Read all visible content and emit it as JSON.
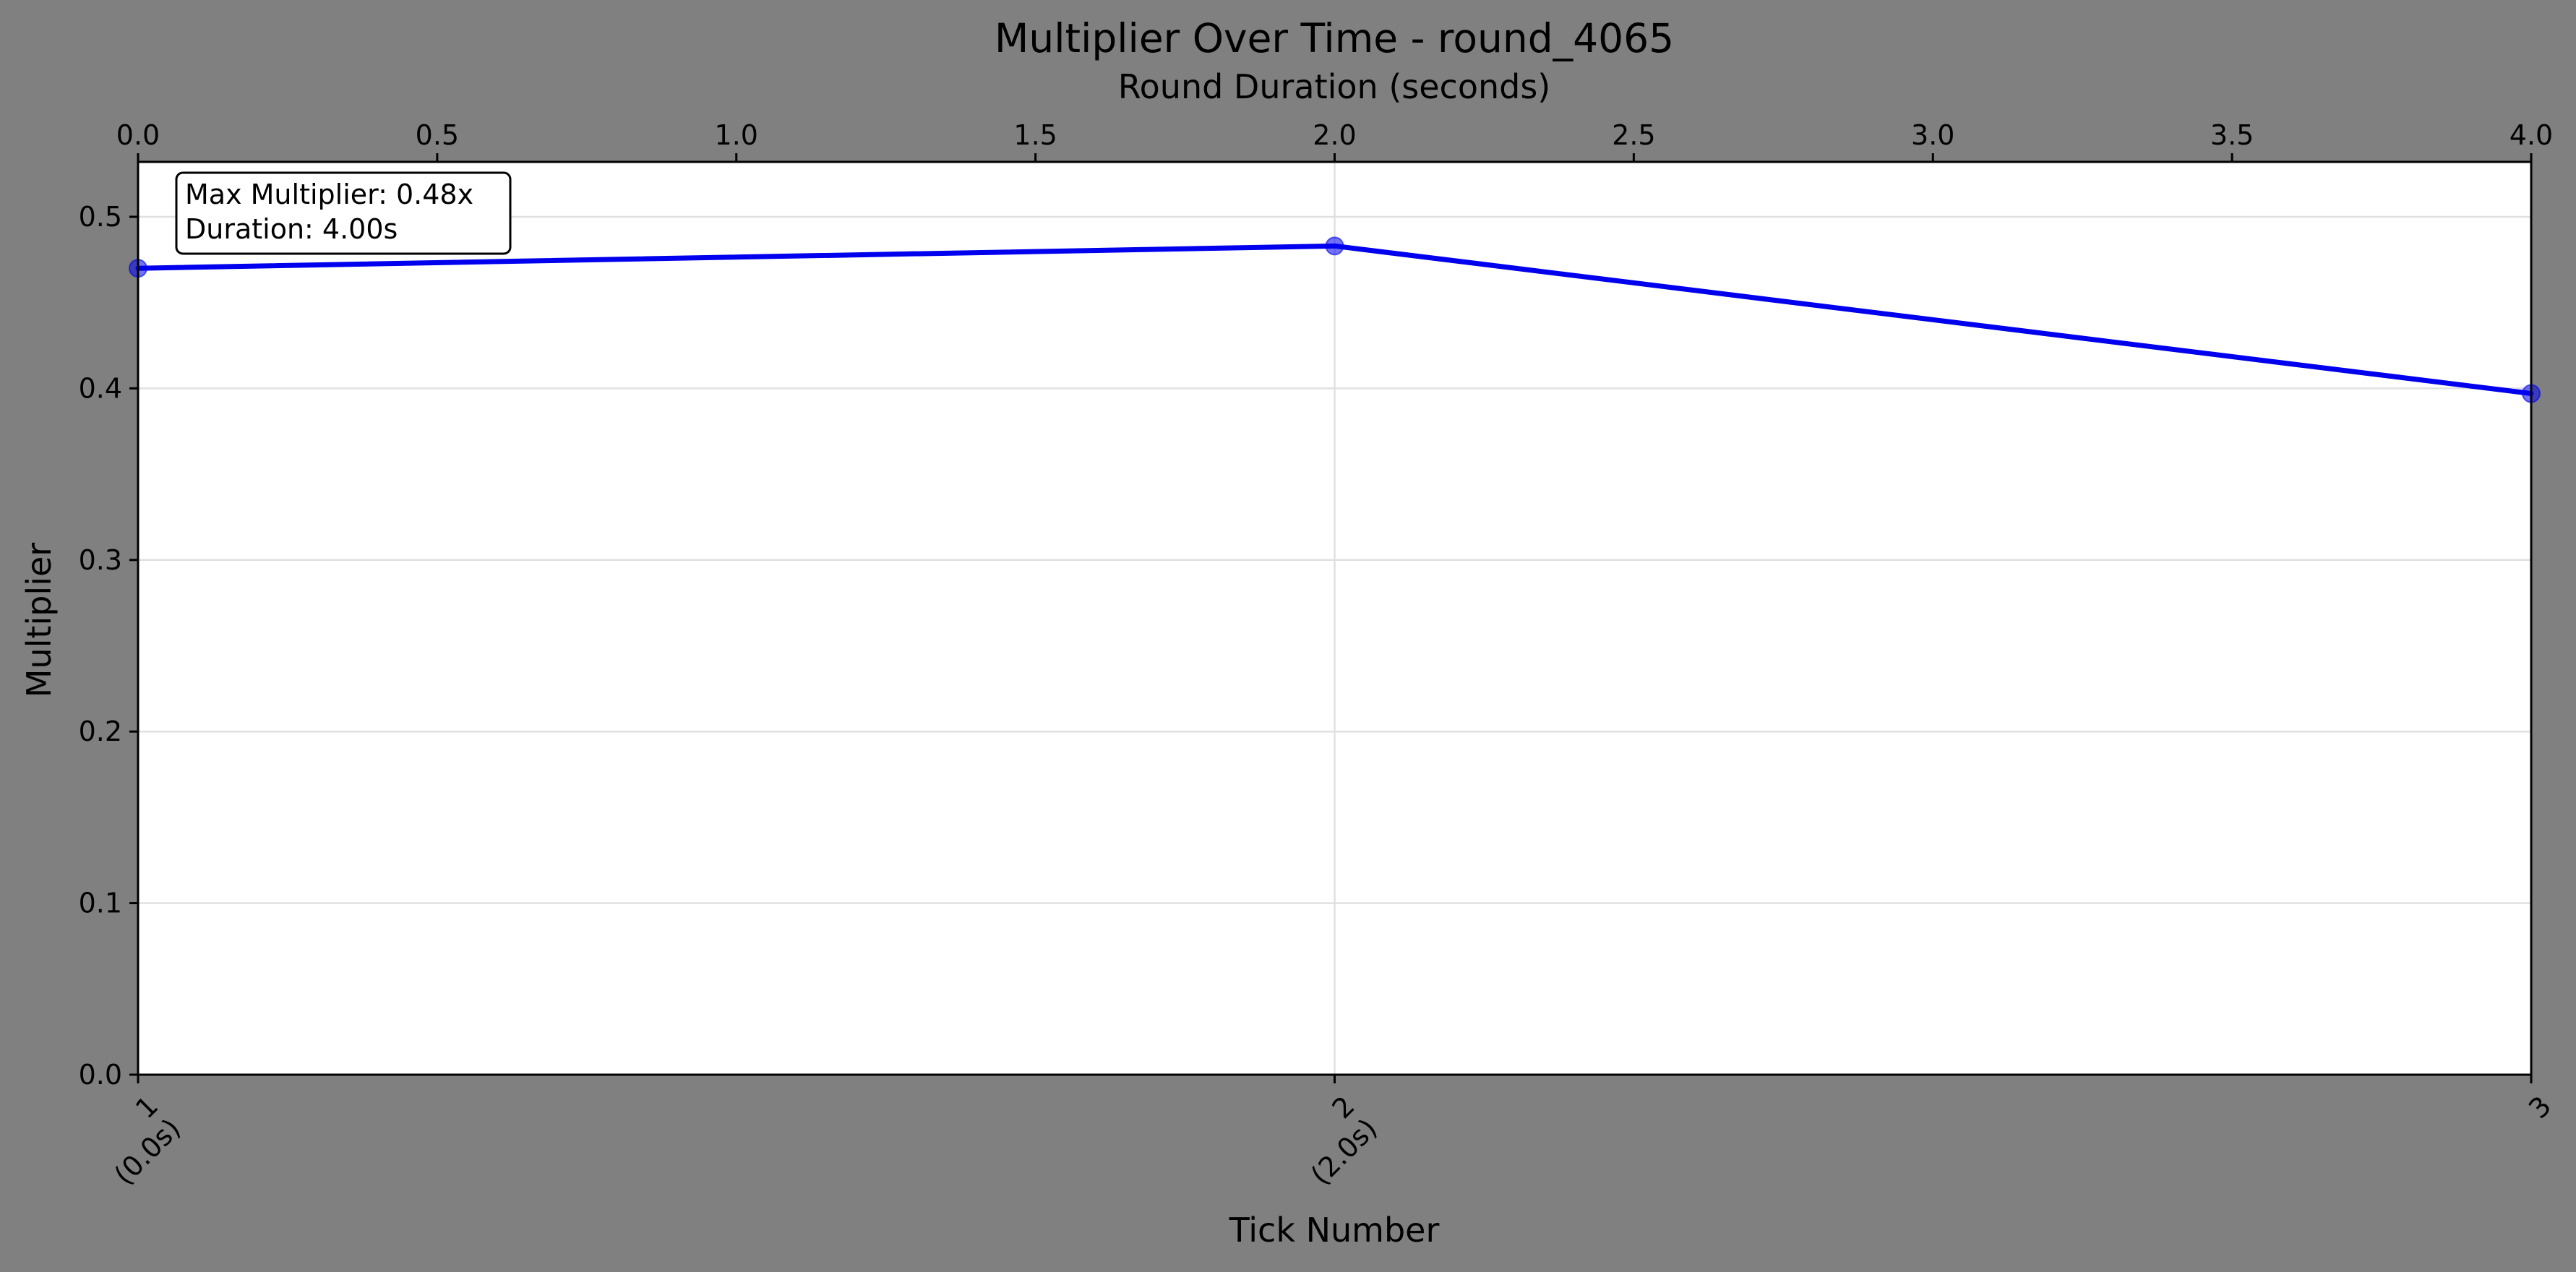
{
  "chart_data": {
    "type": "line",
    "title": "Multiplier Over Time - round_4065",
    "xlabel": "Tick Number",
    "x2label": "Round Duration (seconds)",
    "ylabel": "Multiplier",
    "x": [
      1,
      2,
      3
    ],
    "x_tick_labels": [
      "1\n(0.0s)",
      "2\n(2.0s)",
      "3"
    ],
    "x2": [
      0.0,
      2.0,
      4.0
    ],
    "x2_ticks": [
      0.0,
      0.5,
      1.0,
      1.5,
      2.0,
      2.5,
      3.0,
      3.5,
      4.0
    ],
    "x2_tick_labels": [
      "0.0",
      "0.5",
      "1.0",
      "1.5",
      "2.0",
      "2.5",
      "3.0",
      "3.5",
      "4.0"
    ],
    "series": [
      {
        "values": [
          0.47,
          0.483,
          0.397
        ],
        "color": "#0000ee"
      }
    ],
    "y_ticks": [
      0.0,
      0.1,
      0.2,
      0.3,
      0.4,
      0.5
    ],
    "y_tick_labels": [
      "0.0",
      "0.1",
      "0.2",
      "0.3",
      "0.4",
      "0.5"
    ],
    "ylim": [
      0,
      0.532
    ],
    "xlim": [
      1,
      3
    ],
    "x2lim": [
      0,
      4
    ],
    "grid": true,
    "annotation": {
      "line1": "Max Multiplier: 0.48x",
      "line2": "Duration: 4.00s",
      "placement": "top-left"
    }
  }
}
